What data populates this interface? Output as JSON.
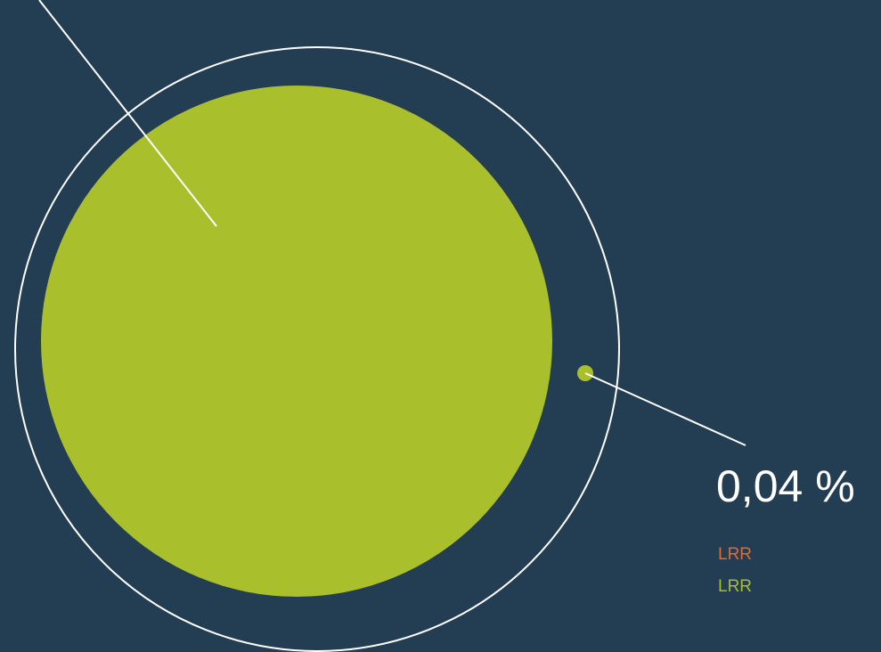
{
  "colors": {
    "background": "#233d52",
    "outline": "#ffffff",
    "large_circle": "#a9bf2c",
    "small_dot": "#a9bf2c",
    "legend_1": "#e8692c",
    "legend_2": "#a9bf2c"
  },
  "callout": {
    "value": "0,04 %"
  },
  "legend": [
    {
      "label": "LRR",
      "color": "#e8692c"
    },
    {
      "label": "LRR",
      "color": "#a9bf2c"
    }
  ]
}
